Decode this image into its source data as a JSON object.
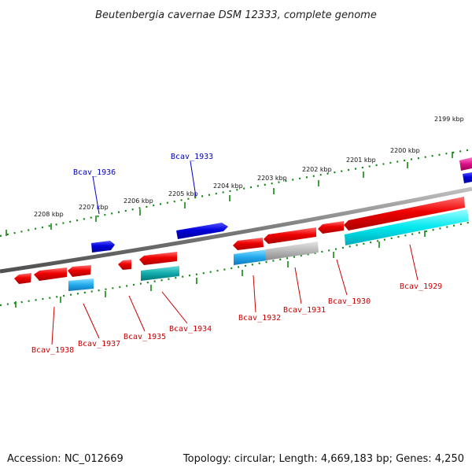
{
  "title": "Beutenbergia cavernae DSM 12333, complete genome",
  "footer": {
    "accession": "Accession: NC_012669",
    "stats": "Topology: circular; Length: 4,669,183 bp; Genes: 4,250"
  },
  "colors": {
    "forward_gene": "#0000dd",
    "reverse_gene": "#ee0000",
    "forward_label": "#0000cc",
    "reverse_label": "#cc0000",
    "scale_ticks": "#118811",
    "backbone": "#808080",
    "cds_cyan": "#00dddd",
    "cds_teal": "#11aaaa",
    "cds_blue": "#22aaee",
    "cds_gray": "#b0b0b0",
    "pink_gene": "#dd1188"
  },
  "kbp_labels": [
    "2208 kbp",
    "2207 kbp",
    "2206 kbp",
    "2205 kbp",
    "2204 kbp",
    "2203 kbp",
    "2202 kbp",
    "2201 kbp",
    "2200 kbp",
    "2199 kbp"
  ],
  "gene_labels": {
    "forward": [
      "Bcav_1936",
      "Bcav_1933"
    ],
    "reverse": [
      "Bcav_1938",
      "Bcav_1937",
      "Bcav_1935",
      "Bcav_1934",
      "Bcav_1932",
      "Bcav_1931",
      "Bcav_1930",
      "Bcav_1929"
    ]
  }
}
